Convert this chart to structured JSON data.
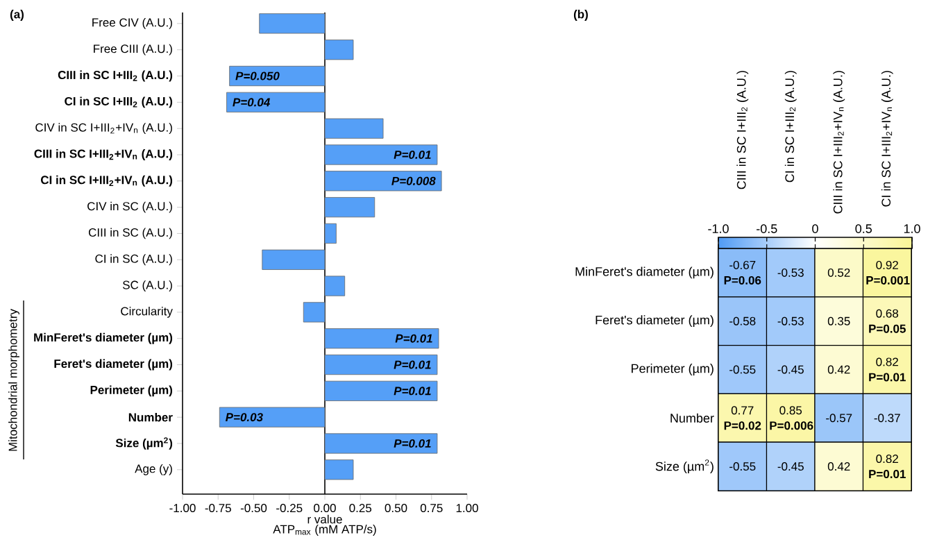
{
  "chart_data": [
    {
      "type": "bar",
      "title": "(a)",
      "orientation": "horizontal",
      "xlabel": "r value",
      "categories": [
        "Free CIV (A.U.)",
        "Free CIII (A.U.)",
        "CIII in SC I+III$_{2}$ (A.U.)",
        "CI in SC I+III$_{2}$ (A.U.)",
        "CIV in SC I+III$_{2}$+IV$_{n}$ (A.U.)",
        "CIII in SC I+III$_{2}$+IV$_{n}$ (A.U.)",
        "CI in SC I+III$_{2}$+IV$_{n}$ (A.U.)",
        "CIV in SC (A.U.)",
        "CIII in SC (A.U.)",
        "CI in SC (A.U.)",
        "SC (A.U.)",
        "Circularity",
        "MinFeret's diameter (µm)",
        "Feret's diameter (µm)",
        "Perimeter (µm)",
        "Number",
        "Size (µm$^{2}$)",
        "Age (y)"
      ],
      "values": [
        -0.46,
        0.2,
        -0.67,
        -0.69,
        0.41,
        0.79,
        0.82,
        0.35,
        0.08,
        -0.44,
        0.14,
        -0.15,
        0.8,
        0.79,
        0.79,
        -0.74,
        0.79,
        0.2
      ],
      "color": "#559ff7",
      "xlim": [
        -1,
        1
      ],
      "xticks": [
        {
          "value": -1,
          "label": "-1.00"
        },
        {
          "value": -0.75,
          "label": "-0.75"
        },
        {
          "value": -0.5,
          "label": "-0.50"
        },
        {
          "value": -0.25,
          "label": "-0.25"
        },
        {
          "value": 0,
          "label": "0.00"
        },
        {
          "value": 0.25,
          "label": "0.25"
        },
        {
          "value": 0.5,
          "label": "0.50"
        },
        {
          "value": 0.75,
          "label": "0.75"
        },
        {
          "value": 1,
          "label": "1.00"
        }
      ],
      "annotations": [
        "ATP$_{max}$ (mM ATP/s)",
        "Mitochondrial morphometry",
        {
          "text": "P=0.050",
          "x": -0.67,
          "y": "CIII in SC I+III$_{2}$ (A.U.)"
        },
        {
          "text": "P=0.04",
          "x": -0.69,
          "y": "CI in SC I+III$_{2}$ (A.U.)"
        },
        {
          "text": "P=0.01",
          "x": 0.79,
          "y": "CIII in SC I+III$_{2}$+IV$_{n}$ (A.U.)"
        },
        {
          "text": "P=0.008",
          "x": 0.82,
          "y": "CI in SC I+III$_{2}$+IV$_{n}$ (A.U.)"
        },
        {
          "text": "P=0.01",
          "x": 0.8,
          "y": "MinFeret's diameter (µm)"
        },
        {
          "text": "P=0.01",
          "x": 0.79,
          "y": "Feret's diameter (µm)"
        },
        {
          "text": "P=0.01",
          "x": 0.79,
          "y": "Perimeter (µm)"
        },
        {
          "text": "P=0.03",
          "x": -0.74,
          "y": "Number"
        },
        {
          "text": "P=0.01",
          "x": 0.79,
          "y": "Size (µm$^{2}$)"
        }
      ]
    },
    {
      "type": "heatmap",
      "title": "(b)",
      "categories": [
        "CIII in SC I+III$_{2}$ (A.U.)",
        "CI in SC I+III$_{2}$ (A.U.)",
        "CIII in SC I+III$_{2}$+IV$_{n}$ (A.U.)",
        "CI in SC I+III$_{2}$+IV$_{n}$ (A.U.)"
      ],
      "y_categories": [
        "MinFeret's diameter (µm)",
        "Feret's diameter (µm)",
        "Perimeter (µm)",
        "Number",
        "Size (µm$^{2}$)"
      ],
      "cells": [
        [
          -0.67,
          -0.53,
          0.52,
          0.92
        ],
        [
          -0.58,
          -0.53,
          0.35,
          0.68
        ],
        [
          -0.55,
          -0.45,
          0.42,
          0.82
        ],
        [
          0.77,
          0.85,
          -0.57,
          -0.37
        ],
        [
          -0.55,
          -0.45,
          0.42,
          0.82
        ]
      ],
      "cell_labels": [
        [
          "-0.67 **P=0.06**",
          "-0.53",
          "0.52",
          "0.92 **P=0.001**"
        ],
        [
          "-0.58",
          "-0.53",
          "0.35",
          "0.68 **P=0.05**"
        ],
        [
          "-0.55",
          "-0.45",
          "0.42",
          "0.82 **P=0.01**"
        ],
        [
          "0.77 **P=0.02**",
          "0.85 **P=0.006**",
          "-0.57",
          "-0.37"
        ],
        [
          "-0.55",
          "-0.45",
          "0.42",
          "0.82 **P=0.01**"
        ]
      ],
      "clim": [
        -1,
        1
      ],
      "cticks": [
        {
          "value": -1,
          "label": "-1.0"
        },
        {
          "value": -0.5,
          "label": "-0.5"
        },
        0,
        {
          "value": 0.5,
          "label": "0.5"
        },
        {
          "value": 1,
          "label": "1.0"
        }
      ]
    }
  ]
}
